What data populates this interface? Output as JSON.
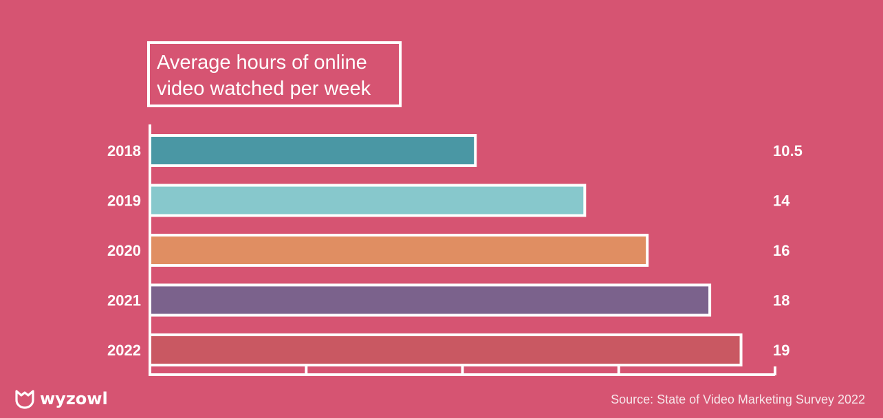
{
  "chart_data": {
    "type": "bar",
    "orientation": "horizontal",
    "title_lines": [
      "Average hours of online",
      "video watched per week"
    ],
    "categories": [
      "2018",
      "2019",
      "2020",
      "2021",
      "2022"
    ],
    "values": [
      10.5,
      14,
      16,
      18,
      19
    ],
    "value_labels": [
      "10.5",
      "14",
      "16",
      "18",
      "19"
    ],
    "xlim": [
      0,
      20
    ],
    "bar_colors": [
      "#4a97a4",
      "#87c8cc",
      "#e08e62",
      "#7b628c",
      "#c95862"
    ],
    "grid": false
  },
  "source": "Source: State of Video Marketing Survey 2022",
  "brand": {
    "name": "wyzowl",
    "icon": "wyzowl-owl-icon"
  },
  "colors": {
    "background": "#d65472",
    "foreground": "#ffffff"
  }
}
